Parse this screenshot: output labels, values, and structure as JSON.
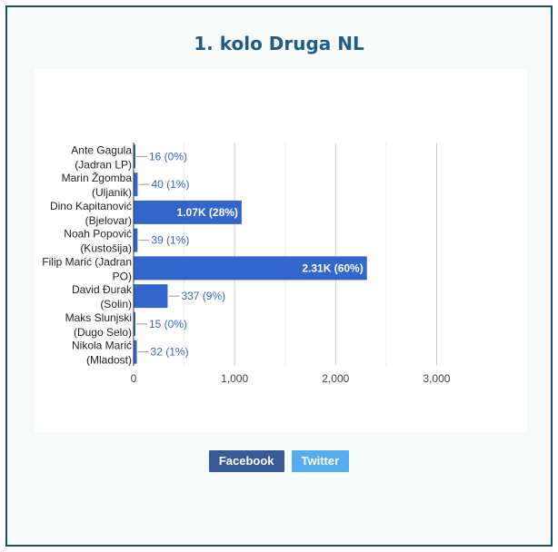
{
  "page": {
    "title": "1. kolo Druga NL"
  },
  "colors": {
    "bar": "#3366cc",
    "title": "#1e5c8a",
    "frame_border": "#1e4a6e",
    "frame_background": "#f6fbf9",
    "gridline": "#cccccc",
    "facebook": "#3b5998",
    "twitter": "#55acee"
  },
  "share": {
    "facebook_label": "Facebook",
    "twitter_label": "Twitter"
  },
  "chart_data": {
    "type": "bar",
    "orientation": "horizontal",
    "categories": [
      [
        "Ante Gagula",
        "(Jadran LP)"
      ],
      [
        "Marin Žgomba",
        "(Uljanik)"
      ],
      [
        "Dino Kapitanović",
        "(Bjelovar)"
      ],
      [
        "Noah Popović",
        "(Kustošija)"
      ],
      [
        "Filip Marić (Jadran",
        "PO)"
      ],
      [
        "David Đurak",
        "(Solin)"
      ],
      [
        "Maks Slunjski",
        "(Dugo Selo)"
      ],
      [
        "Nikola Marić",
        "(Mladost)"
      ]
    ],
    "values": [
      16,
      40,
      1070,
      39,
      2310,
      337,
      15,
      32
    ],
    "data_labels": [
      "16 (0%)",
      "40 (1%)",
      "1.07K (28%)",
      "39 (1%)",
      "2.31K (60%)",
      "337 (9%)",
      "15 (0%)",
      "32 (1%)"
    ],
    "label_inside": [
      false,
      false,
      true,
      false,
      true,
      false,
      false,
      false
    ],
    "xlim": [
      0,
      3500
    ],
    "x_ticks": [
      0,
      1000,
      2000,
      3000
    ],
    "x_tick_labels": [
      "0",
      "1,000",
      "2,000",
      "3,000"
    ],
    "minor_gridlines": [
      500,
      1500,
      2500
    ],
    "grid": true,
    "legend": "none"
  }
}
